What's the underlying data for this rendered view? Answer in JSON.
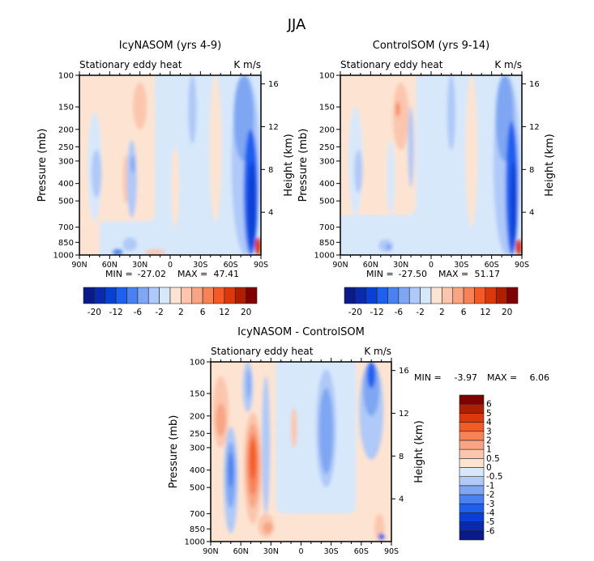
{
  "title": "JJA",
  "chart_data": [
    {
      "type": "heatmap",
      "title": "IcyNASOM (yrs 4-9)",
      "left_label": "Stationary eddy heat",
      "right_label": "K m/s",
      "ylabel": "Pressure (mb)",
      "ylabel_right": "Height (km)",
      "x_ticks": [
        "90N",
        "60N",
        "30N",
        "0",
        "30S",
        "60S",
        "90S"
      ],
      "x_tick_values": [
        90,
        60,
        30,
        0,
        -30,
        -60,
        -90
      ],
      "y_ticks": [
        100,
        150,
        200,
        250,
        300,
        400,
        500,
        700,
        850,
        1000
      ],
      "y_scale": "log",
      "y_right_ticks": [
        4,
        8,
        12,
        16
      ],
      "min_label": "MIN =",
      "min": "-27.02",
      "max_label": "MAX =",
      "max": "47.41",
      "colorbar": "horizontal",
      "levels": [
        -20,
        -16,
        -12,
        -8,
        -6,
        -4,
        -2,
        0,
        2,
        4,
        6,
        8,
        12,
        16,
        20
      ],
      "colorbar_labels": [
        "-20",
        "-12",
        "-6",
        "-2",
        "2",
        "6",
        "12",
        "20"
      ],
      "background_value": -1,
      "features": [
        {
          "shape": "rect",
          "lat": [
            90,
            15
          ],
          "p": [
            100,
            650
          ],
          "v": 1
        },
        {
          "shape": "rect",
          "lat": [
            90,
            70
          ],
          "p": [
            100,
            1000
          ],
          "v": 1
        },
        {
          "lat": 75,
          "p": [
            160,
            650
          ],
          "lat_half": 7,
          "v": -1
        },
        {
          "lat": 73,
          "p": [
            260,
            480
          ],
          "lat_half": 5,
          "v": -3
        },
        {
          "lat": -5,
          "p": [
            250,
            700
          ],
          "lat_half": 4,
          "v": 1
        },
        {
          "lat": -45,
          "p": [
            100,
            650
          ],
          "lat_half": 6,
          "v": 1
        },
        {
          "lat": 44,
          "p": [
            280,
            520
          ],
          "lat_half": 3,
          "v": 2.5
        },
        {
          "lat": 38,
          "p": [
            230,
            620
          ],
          "lat_half": 5,
          "v": -3
        },
        {
          "lat": 37,
          "p": [
            280,
            350
          ],
          "lat_half": 2,
          "v": -5
        },
        {
          "lat": 30,
          "p": [
            110,
            200
          ],
          "lat_half": 7,
          "v": 3
        },
        {
          "lat": 40,
          "p": [
            800,
            950
          ],
          "lat_half": 7,
          "v": -3
        },
        {
          "lat": 52,
          "p": [
            930,
            1000
          ],
          "lat_half": 5,
          "v": -7
        },
        {
          "lat": 15,
          "p": [
            930,
            1000
          ],
          "lat_half": 10,
          "v": 3
        },
        {
          "lat": -22,
          "p": [
            100,
            240
          ],
          "lat_half": 4,
          "v": -3
        },
        {
          "lat": -75,
          "p": [
            100,
            1000
          ],
          "lat_half": 14,
          "v": -3
        },
        {
          "lat": -73,
          "p": [
            100,
            300
          ],
          "lat_half": 10,
          "v": -5
        },
        {
          "lat": -80,
          "p": [
            200,
            1000
          ],
          "lat_half": 7,
          "v": -10
        },
        {
          "lat": -81,
          "p": [
            300,
            900
          ],
          "lat_half": 4,
          "v": -14
        },
        {
          "lat": -87,
          "p": [
            800,
            1000
          ],
          "lat_half": 3,
          "v": 14
        }
      ]
    },
    {
      "type": "heatmap",
      "title": "ControlSOM (yrs 9-14)",
      "left_label": "Stationary eddy heat",
      "right_label": "K m/s",
      "ylabel": "Pressure (mb)",
      "ylabel_right": "Height (km)",
      "x_ticks": [
        "90N",
        "60N",
        "30N",
        "0",
        "30S",
        "60S",
        "90S"
      ],
      "x_tick_values": [
        90,
        60,
        30,
        0,
        -30,
        -60,
        -90
      ],
      "y_ticks": [
        100,
        150,
        200,
        250,
        300,
        400,
        500,
        700,
        850,
        1000
      ],
      "y_scale": "log",
      "y_right_ticks": [
        4,
        8,
        12,
        16
      ],
      "min_label": "MIN =",
      "min": "-27.50",
      "max_label": "MAX =",
      "max": "51.17",
      "colorbar": "horizontal",
      "levels": [
        -20,
        -16,
        -12,
        -8,
        -6,
        -4,
        -2,
        0,
        2,
        4,
        6,
        8,
        12,
        16,
        20
      ],
      "colorbar_labels": [
        "-20",
        "-12",
        "-6",
        "-2",
        "2",
        "6",
        "12",
        "20"
      ],
      "background_value": -1,
      "features": [
        {
          "shape": "rect",
          "lat": [
            90,
            15
          ],
          "p": [
            100,
            600
          ],
          "v": 1
        },
        {
          "lat": -40,
          "p": [
            100,
            700
          ],
          "lat_half": 6,
          "v": 1
        },
        {
          "lat": 75,
          "p": [
            150,
            600
          ],
          "lat_half": 7,
          "v": -1
        },
        {
          "lat": 72,
          "p": [
            260,
            450
          ],
          "lat_half": 4,
          "v": -3
        },
        {
          "lat": 30,
          "p": [
            110,
            260
          ],
          "lat_half": 8,
          "v": 3
        },
        {
          "lat": 33,
          "p": [
            140,
            170
          ],
          "lat_half": 2,
          "v": 7
        },
        {
          "lat": 20,
          "p": [
            150,
            420
          ],
          "lat_half": 3,
          "v": -3
        },
        {
          "lat": 40,
          "p": [
            230,
            600
          ],
          "lat_half": 4,
          "v": -1
        },
        {
          "lat": 45,
          "p": [
            820,
            960
          ],
          "lat_half": 7,
          "v": -3
        },
        {
          "lat": 42,
          "p": [
            870,
            940
          ],
          "lat_half": 3,
          "v": -5
        },
        {
          "lat": -20,
          "p": [
            100,
            260
          ],
          "lat_half": 4,
          "v": -3
        },
        {
          "lat": -75,
          "p": [
            100,
            1000
          ],
          "lat_half": 13,
          "v": -3
        },
        {
          "lat": -73,
          "p": [
            100,
            300
          ],
          "lat_half": 9,
          "v": -5
        },
        {
          "lat": -80,
          "p": [
            180,
            1000
          ],
          "lat_half": 6,
          "v": -10
        },
        {
          "lat": -82,
          "p": [
            300,
            900
          ],
          "lat_half": 3,
          "v": -14
        },
        {
          "lat": -87,
          "p": [
            820,
            1000
          ],
          "lat_half": 3,
          "v": 14
        }
      ]
    },
    {
      "type": "heatmap",
      "title": "IcyNASOM - ControlSOM",
      "left_label": "Stationary eddy heat",
      "right_label": "K m/s",
      "ylabel": "Pressure (mb)",
      "ylabel_right": "Height (km)",
      "x_ticks": [
        "90N",
        "60N",
        "30N",
        "0",
        "30S",
        "60S",
        "90S"
      ],
      "x_tick_values": [
        90,
        60,
        30,
        0,
        -30,
        -60,
        -90
      ],
      "y_ticks": [
        100,
        150,
        200,
        250,
        300,
        400,
        500,
        700,
        850,
        1000
      ],
      "y_scale": "log",
      "y_right_ticks": [
        4,
        8,
        12,
        16
      ],
      "min_label": "MIN =",
      "min": "-3.97",
      "max_label": "MAX =",
      "max": "6.06",
      "colorbar": "vertical",
      "levels": [
        -6,
        -5,
        -4,
        -3,
        -2,
        -1,
        -0.5,
        0,
        0.5,
        1,
        2,
        3,
        4,
        5,
        6
      ],
      "colorbar_labels": [
        "-6",
        "-5",
        "-4",
        "-3",
        "-2",
        "-1",
        "-0.5",
        "0",
        "0.5",
        "1",
        "2",
        "3",
        "4",
        "5",
        "6"
      ],
      "background_value": 0.3,
      "features": [
        {
          "shape": "rect",
          "lat": [
            25,
            -55
          ],
          "p": [
            100,
            700
          ],
          "v": -0.3
        },
        {
          "lat": 80,
          "p": [
            120,
            300
          ],
          "lat_half": 8,
          "v": 0.7
        },
        {
          "lat": 80,
          "p": [
            170,
            260
          ],
          "lat_half": 5,
          "v": 1.5
        },
        {
          "lat": 70,
          "p": [
            230,
            900
          ],
          "lat_half": 7,
          "v": -0.7
        },
        {
          "lat": 70,
          "p": [
            280,
            650
          ],
          "lat_half": 5,
          "v": -1.5
        },
        {
          "lat": 70,
          "p": [
            320,
            500
          ],
          "lat_half": 2.5,
          "v": -2.5
        },
        {
          "lat": 48,
          "p": [
            190,
            800
          ],
          "lat_half": 9,
          "v": 0.7
        },
        {
          "lat": 48,
          "p": [
            220,
            650
          ],
          "lat_half": 7,
          "v": 1.5
        },
        {
          "lat": 48,
          "p": [
            250,
            550
          ],
          "lat_half": 5,
          "v": 2.5
        },
        {
          "lat": 48,
          "p": [
            270,
            450
          ],
          "lat_half": 3,
          "v": 3.5
        },
        {
          "lat": 53,
          "p": [
            100,
            190
          ],
          "lat_half": 5,
          "v": -0.7
        },
        {
          "lat": 52,
          "p": [
            110,
            160
          ],
          "lat_half": 2,
          "v": -1.5
        },
        {
          "lat": 35,
          "p": [
            120,
            700
          ],
          "lat_half": 4,
          "v": -0.7
        },
        {
          "lat": 35,
          "p": [
            700,
            950
          ],
          "lat_half": 8,
          "v": 0.7
        },
        {
          "lat": 33,
          "p": [
            780,
            900
          ],
          "lat_half": 5,
          "v": 1.5
        },
        {
          "lat": 7,
          "p": [
            180,
            300
          ],
          "lat_half": 3,
          "v": 0.7
        },
        {
          "lat": -25,
          "p": [
            110,
            500
          ],
          "lat_half": 10,
          "v": -0.7
        },
        {
          "lat": -25,
          "p": [
            140,
            420
          ],
          "lat_half": 7,
          "v": -1.5
        },
        {
          "lat": -70,
          "p": [
            100,
            350
          ],
          "lat_half": 12,
          "v": -0.7
        },
        {
          "lat": -70,
          "p": [
            100,
            200
          ],
          "lat_half": 8,
          "v": -1.5
        },
        {
          "lat": -70,
          "p": [
            100,
            140
          ],
          "lat_half": 4,
          "v": -3
        },
        {
          "lat": -78,
          "p": [
            700,
            1000
          ],
          "lat_half": 5,
          "v": 0.7
        },
        {
          "lat": -80,
          "p": [
            900,
            980
          ],
          "lat_half": 3,
          "v": -3
        }
      ]
    }
  ],
  "colors": [
    "#0a1a86",
    "#0a2aae",
    "#0a3fd6",
    "#1f5ff0",
    "#4a80f0",
    "#7fa6f2",
    "#afc9f8",
    "#d7e8fb",
    "#fde4d2",
    "#fbc6ad",
    "#f8a585",
    "#f78257",
    "#f45a28",
    "#dc380e",
    "#b01e02",
    "#7f0000"
  ]
}
